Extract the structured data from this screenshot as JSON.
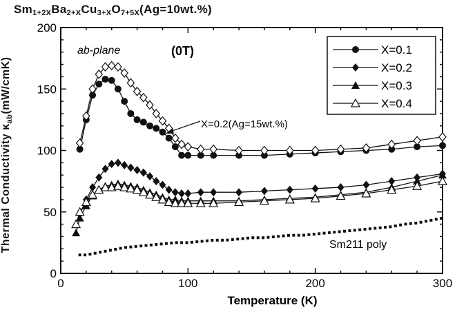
{
  "title": {
    "parts": [
      {
        "t": "Sm",
        "sub": "1+2X"
      },
      {
        "t": "Ba",
        "sub": "2+X"
      },
      {
        "t": "Cu",
        "sub": "3+X"
      },
      {
        "t": "O",
        "sub": "7+5X"
      },
      {
        "t": "(Ag=10wt.%)",
        "sub": ""
      }
    ]
  },
  "chart_data": {
    "type": "line",
    "xlabel": "Temperature   (K)",
    "ylabel": {
      "main": "Thermal  Conductivity  κ",
      "sub": "ab",
      "tail": "(mW/cmK)"
    },
    "xlim": [
      0,
      300
    ],
    "ylim": [
      0,
      200
    ],
    "xticks": [
      "0",
      "100",
      "200",
      "300"
    ],
    "yticks": [
      "0",
      "50",
      "100",
      "150",
      "200"
    ],
    "annotations": {
      "plane": "ab-plane",
      "field": "(0T)",
      "arrow_label": "X=0.2(Ag=15wt.%)",
      "poly_label": "Sm211 poly"
    },
    "legend_position": "top-right",
    "series": [
      {
        "name": "X=0.1",
        "marker": "circle-filled",
        "x": [
          15,
          20,
          25,
          30,
          35,
          40,
          45,
          50,
          55,
          60,
          65,
          70,
          75,
          80,
          85,
          90,
          95,
          100,
          110,
          120,
          140,
          160,
          180,
          200,
          220,
          240,
          260,
          280,
          300
        ],
        "y": [
          101,
          125,
          145,
          154,
          158,
          157,
          150,
          140,
          130,
          125,
          123,
          120,
          118,
          115,
          110,
          103,
          96,
          96,
          96,
          96,
          96,
          96,
          97,
          98,
          99,
          100,
          101,
          103,
          104
        ]
      },
      {
        "name": "X=0.2",
        "marker": "diamond-filled",
        "x": [
          15,
          20,
          25,
          30,
          35,
          40,
          45,
          50,
          55,
          60,
          65,
          70,
          75,
          80,
          85,
          90,
          95,
          100,
          110,
          120,
          140,
          160,
          180,
          200,
          220,
          240,
          260,
          280,
          300
        ],
        "y": [
          48,
          60,
          70,
          78,
          85,
          89,
          90,
          88,
          86,
          84,
          82,
          79,
          75,
          72,
          68,
          66,
          65,
          65,
          66,
          66,
          66,
          67,
          68,
          69,
          70,
          72,
          75,
          78,
          81
        ]
      },
      {
        "name": "X=0.3",
        "marker": "triangle-filled",
        "x": [
          12,
          15,
          20,
          25,
          30,
          35,
          40,
          45,
          50,
          55,
          60,
          65,
          70,
          75,
          80,
          85,
          90,
          95,
          100,
          110,
          120,
          140,
          160,
          180,
          200,
          220,
          240,
          260,
          280,
          300
        ],
        "y": [
          33,
          45,
          55,
          63,
          68,
          71,
          72,
          73,
          72,
          71,
          70,
          68,
          66,
          64,
          62,
          60,
          60,
          59,
          59,
          59,
          59,
          59,
          60,
          61,
          62,
          64,
          66,
          70,
          75,
          80
        ]
      },
      {
        "name": "X=0.4",
        "marker": "triangle-open",
        "x": [
          12,
          15,
          20,
          25,
          30,
          35,
          40,
          45,
          50,
          55,
          60,
          65,
          70,
          75,
          80,
          85,
          90,
          95,
          100,
          110,
          120,
          140,
          160,
          180,
          200,
          220,
          240,
          260,
          280,
          300
        ],
        "y": [
          40,
          50,
          58,
          64,
          68,
          70,
          70,
          71,
          70,
          69,
          68,
          66,
          64,
          62,
          60,
          58,
          57,
          57,
          57,
          57,
          57,
          58,
          59,
          60,
          61,
          63,
          65,
          68,
          71,
          75
        ]
      },
      {
        "name": "X=0.2(Ag=15wt.%)",
        "marker": "diamond-open",
        "x": [
          15,
          20,
          25,
          30,
          35,
          40,
          45,
          50,
          55,
          60,
          65,
          70,
          75,
          80,
          85,
          90,
          95,
          100,
          110,
          120,
          140,
          160,
          180,
          200,
          220,
          240,
          260,
          280,
          300
        ],
        "y": [
          106,
          128,
          150,
          162,
          168,
          169,
          168,
          163,
          155,
          148,
          143,
          137,
          130,
          124,
          118,
          110,
          105,
          103,
          101,
          101,
          100,
          100,
          100,
          100,
          101,
          102,
          105,
          108,
          111
        ]
      },
      {
        "name": "Sm211 poly",
        "marker": "square-small",
        "x": [
          15,
          20,
          30,
          40,
          50,
          60,
          70,
          80,
          90,
          100,
          110,
          120,
          130,
          140,
          150,
          160,
          170,
          180,
          190,
          200,
          210,
          220,
          230,
          240,
          250,
          260,
          270,
          280,
          290,
          300
        ],
        "y": [
          15,
          15,
          17,
          19,
          21,
          22,
          23,
          24,
          25,
          25,
          26,
          27,
          27,
          28,
          29,
          29,
          30,
          31,
          31,
          32,
          33,
          34,
          35,
          36,
          37,
          38,
          40,
          41,
          43,
          45
        ]
      }
    ]
  }
}
